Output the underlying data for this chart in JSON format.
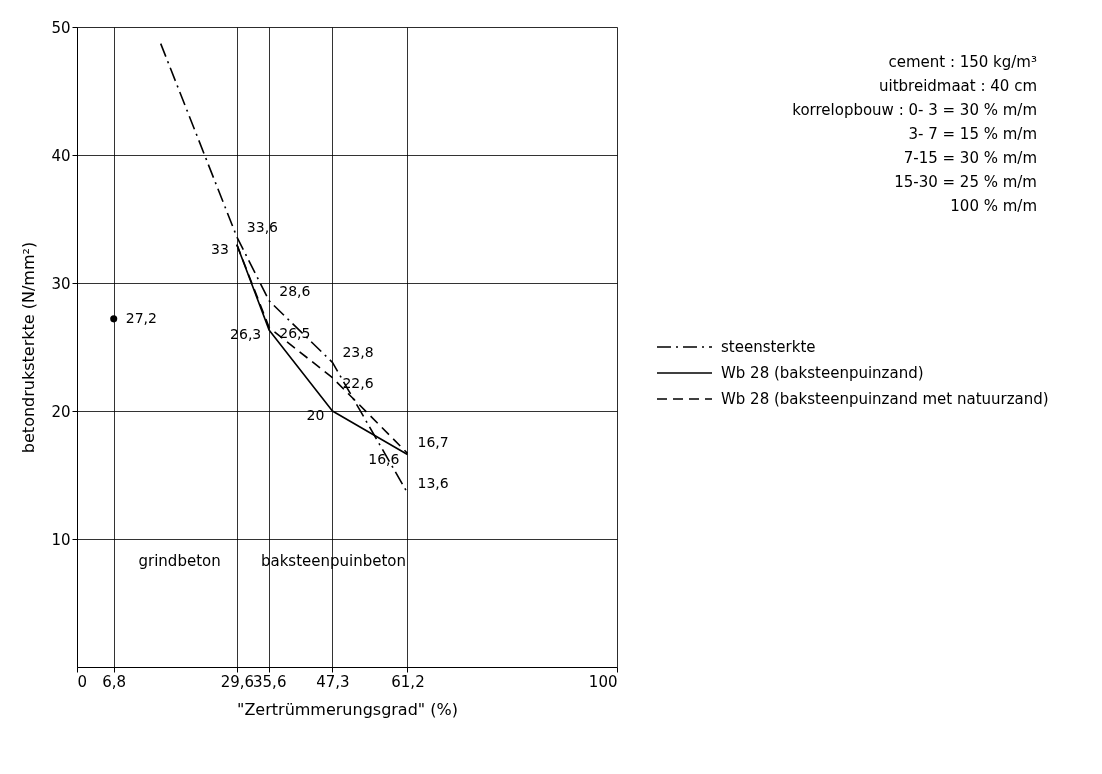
{
  "chart_data": {
    "type": "line",
    "xlabel": "\"Zertrümmerungsgrad\" (%)",
    "ylabel": "betondruksterkte (N/mm²)",
    "xlim": [
      0,
      100
    ],
    "ylim": [
      0,
      50
    ],
    "xticks": [
      0,
      {
        "value": 6.8,
        "label": "6,8"
      },
      {
        "value": 29.6,
        "label": "29,6"
      },
      {
        "value": 35.6,
        "label": "35,6"
      },
      {
        "value": 47.3,
        "label": "47,3"
      },
      {
        "value": 61.2,
        "label": "61,2"
      },
      100
    ],
    "yticks": [
      10,
      20,
      30,
      40,
      50
    ],
    "grid": true,
    "legend": "right",
    "marker": "none",
    "series": [
      {
        "name": "steensterkte",
        "color": "#000000",
        "line_style": "dashdot",
        "x": [
          15.5,
          29.6,
          35.6,
          47.3,
          61.2
        ],
        "values": [
          48.7,
          33.6,
          28.6,
          23.8,
          13.6
        ],
        "value_labels": [
          null,
          "33,6",
          "28,6",
          "23,8",
          "13,6"
        ]
      },
      {
        "name": "Wb 28 (baksteenpuinzand)",
        "color": "#000000",
        "line_style": "solid",
        "x": [
          29.6,
          35.6,
          47.3,
          61.2
        ],
        "values": [
          33,
          26.3,
          20,
          16.6
        ],
        "value_labels": [
          "33",
          "26,3",
          "20",
          "16,6"
        ]
      },
      {
        "name": "Wb 28 (baksteenpuinzand met natuurzand)",
        "color": "#000000",
        "line_style": "dashed",
        "x": [
          29.6,
          35.6,
          47.3,
          61.2
        ],
        "values": [
          33,
          26.5,
          22.6,
          16.7
        ],
        "value_labels": [
          null,
          "26,5",
          "22,6",
          "16,7"
        ]
      },
      {
        "type": "scatter",
        "color": "#000000",
        "marker": "circle",
        "x": [
          6.8
        ],
        "values": [
          27.2
        ],
        "value_labels": [
          "27,2"
        ]
      }
    ],
    "annotations": [
      "grindbeton",
      "baksteenpuinbeton",
      "cement : 150 kg/m³",
      "uitbreidmaat : 40 cm",
      "korrelopbouw : 0- 3 = 30 % m/m",
      "3- 7 = 15 % m/m",
      "7-15 = 30 % m/m",
      "15-30 = 25 % m/m",
      "100 % m/m"
    ]
  }
}
